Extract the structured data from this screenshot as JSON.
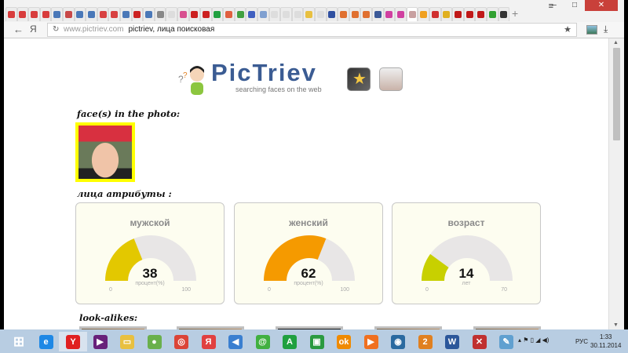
{
  "browser": {
    "tab_icons": [
      "#d83c3c",
      "#d83c3c",
      "#d83c3c",
      "#d83c3c",
      "#4a78b8",
      "#c84848",
      "#4a78b8",
      "#4a78b8",
      "#d84040",
      "#d84040",
      "#4a78b8",
      "#cc2222",
      "#4a78b8",
      "#888888",
      "#dddddd",
      "#d85090",
      "#cc2020",
      "#cc2020",
      "#20a040",
      "#e06040",
      "#40a040",
      "#4060c0",
      "#80a0d0",
      "#dddddd",
      "#dddddd",
      "#dddddd",
      "#e8c040",
      "#dddddd",
      "#3050a0",
      "#e07030",
      "#e07030",
      "#e07030",
      "#3b5998",
      "#d040a0",
      "#d040a0",
      "#c8a0a0",
      "#f0a020",
      "#d03030",
      "#e0b020",
      "#c01818",
      "#c01818",
      "#c01818",
      "#30a030",
      "#333333"
    ],
    "new_tab_label": "+",
    "url": "www.pictriev.com",
    "query": "pictriev, лица поисковая",
    "back_icon": "←",
    "yandex_label": "Я",
    "menu_icon": "≡",
    "minimize": "–",
    "maximize": "□",
    "close": "✕"
  },
  "page": {
    "logo_title": "PicTriev",
    "logo_subtitle": "searching faces on the web",
    "faces_header": "face(s) in the photo:",
    "attributes_header": "лица атрибуты :",
    "lookalikes_header": "look-alikes:",
    "gauges": [
      {
        "title": "мужской",
        "value": 38,
        "unit": "процент(%)",
        "min": 0,
        "max": 100,
        "color": "#e3c800"
      },
      {
        "title": "женский",
        "value": 62,
        "unit": "процент(%)",
        "min": 0,
        "max": 100,
        "color": "#f59a00"
      },
      {
        "title": "возраст",
        "value": 14,
        "unit": "лет",
        "min": 0,
        "max": 70,
        "color": "#c8d000"
      }
    ]
  },
  "taskbar": {
    "apps": [
      {
        "name": "start",
        "color": "#ffffff",
        "glyph": "⊞"
      },
      {
        "name": "internet-explorer",
        "color": "#1e88e5",
        "glyph": "e"
      },
      {
        "name": "yandex-browser",
        "color": "#e02020",
        "glyph": "Y"
      },
      {
        "name": "visual-studio",
        "color": "#68217a",
        "glyph": "▶"
      },
      {
        "name": "file-explorer",
        "color": "#e8c040",
        "glyph": "▭"
      },
      {
        "name": "app-green",
        "color": "#6ab04c",
        "glyph": "●"
      },
      {
        "name": "chrome",
        "color": "#db4437",
        "glyph": "◎"
      },
      {
        "name": "yandex",
        "color": "#e04040",
        "glyph": "Я"
      },
      {
        "name": "audio",
        "color": "#3a7fd0",
        "glyph": "◀"
      },
      {
        "name": "mail-agent",
        "color": "#40b040",
        "glyph": "@"
      },
      {
        "name": "app-a",
        "color": "#20a040",
        "glyph": "A"
      },
      {
        "name": "store",
        "color": "#2a9a40",
        "glyph": "▣"
      },
      {
        "name": "odnoklassniki",
        "color": "#f08a00",
        "glyph": "ok"
      },
      {
        "name": "media-player",
        "color": "#f07020",
        "glyph": "▶"
      },
      {
        "name": "app-disc",
        "color": "#2a6aa0",
        "glyph": "◉"
      },
      {
        "name": "app-2",
        "color": "#e08020",
        "glyph": "2"
      },
      {
        "name": "word",
        "color": "#2b579a",
        "glyph": "W"
      },
      {
        "name": "app-chart",
        "color": "#c03030",
        "glyph": "✕"
      },
      {
        "name": "paint",
        "color": "#60a0d0",
        "glyph": "✎"
      }
    ],
    "tray": "▴ ⚑ ▯ ◢ ◀)",
    "language": "РУС",
    "time": "1:33",
    "date": "30.11.2014"
  }
}
